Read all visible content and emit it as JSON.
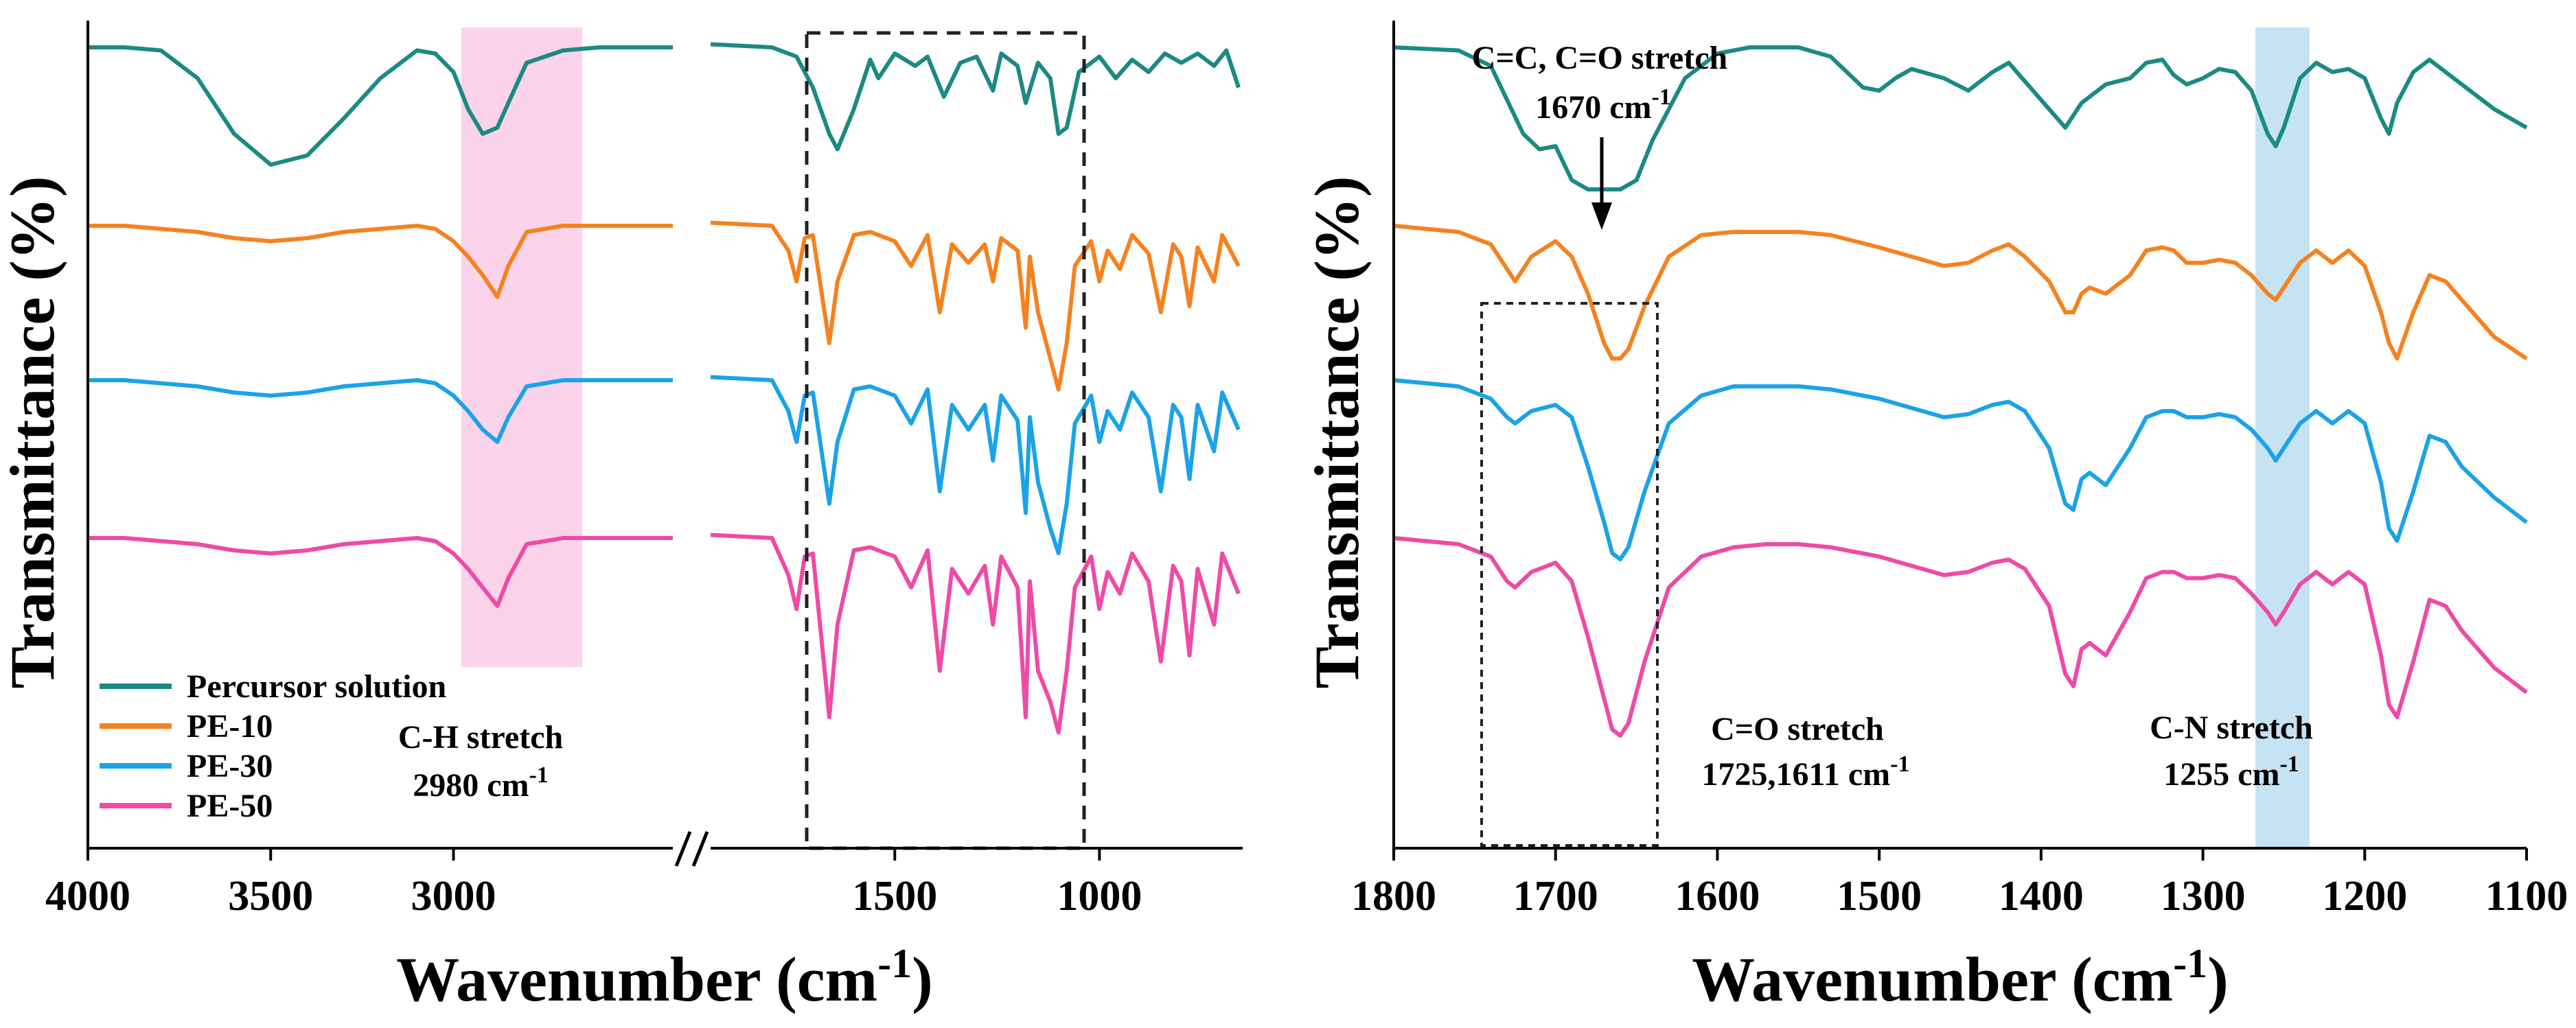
{
  "chart_data": [
    {
      "type": "line",
      "panel": "left",
      "xlabel": "Wavenumber (cm",
      "xlabel_sup": "-1",
      "xlabel_end": ")",
      "ylabel": "Transmittance (%)",
      "x_ticks": [
        "4000",
        "3500",
        "3000",
        "1500",
        "1000"
      ],
      "axis_break": true,
      "xlim_segment_1": [
        4000,
        2400
      ],
      "xlim_segment_2": [
        1950,
        650
      ],
      "legend_position": "bottom-left",
      "series": [
        {
          "name": "Percursor solution",
          "color": "#1b8a82",
          "x": [
            4000,
            3900,
            3800,
            3700,
            3600,
            3500,
            3400,
            3300,
            3200,
            3100,
            3050,
            3000,
            2960,
            2920,
            2880,
            2850,
            2800,
            2700,
            2600,
            2500,
            2400,
            1950,
            1800,
            1740,
            1700,
            1660,
            1640,
            1600,
            1560,
            1540,
            1500,
            1450,
            1420,
            1380,
            1340,
            1300,
            1260,
            1240,
            1200,
            1180,
            1150,
            1120,
            1100,
            1080,
            1050,
            1000,
            960,
            920,
            880,
            840,
            800,
            760,
            720,
            690,
            660
          ],
          "y": [
            98,
            98,
            97,
            88,
            70,
            60,
            63,
            75,
            88,
            97,
            96,
            90,
            78,
            70,
            72,
            80,
            93,
            97,
            98,
            98,
            98,
            99,
            98,
            95,
            85,
            70,
            65,
            78,
            94,
            88,
            96,
            92,
            95,
            82,
            93,
            95,
            84,
            96,
            92,
            80,
            93,
            88,
            70,
            72,
            90,
            95,
            88,
            94,
            90,
            96,
            93,
            96,
            92,
            97,
            85
          ]
        },
        {
          "name": "PE-10",
          "color": "#f5821f",
          "x": [
            4000,
            3900,
            3800,
            3700,
            3600,
            3500,
            3400,
            3300,
            3200,
            3100,
            3050,
            3000,
            2960,
            2920,
            2880,
            2850,
            2800,
            2700,
            2600,
            2500,
            2400,
            1950,
            1800,
            1760,
            1740,
            1720,
            1700,
            1660,
            1640,
            1600,
            1560,
            1500,
            1460,
            1420,
            1390,
            1360,
            1320,
            1280,
            1260,
            1240,
            1200,
            1180,
            1170,
            1150,
            1120,
            1100,
            1080,
            1060,
            1020,
            1000,
            980,
            950,
            920,
            880,
            850,
            820,
            800,
            780,
            760,
            720,
            700,
            660
          ],
          "y": [
            98,
            98,
            97,
            96,
            94,
            93,
            94,
            96,
            97,
            98,
            97,
            93,
            88,
            82,
            75,
            85,
            96,
            98,
            98,
            98,
            98,
            99,
            98,
            90,
            80,
            94,
            95,
            60,
            80,
            95,
            96,
            93,
            85,
            95,
            70,
            92,
            86,
            92,
            80,
            94,
            90,
            65,
            88,
            70,
            55,
            45,
            60,
            85,
            93,
            80,
            90,
            84,
            95,
            89,
            70,
            92,
            88,
            72,
            91,
            80,
            95,
            85
          ]
        },
        {
          "name": "PE-30",
          "color": "#1aa3e8",
          "x": [
            4000,
            3900,
            3800,
            3700,
            3600,
            3500,
            3400,
            3300,
            3200,
            3100,
            3050,
            3000,
            2960,
            2920,
            2880,
            2850,
            2800,
            2700,
            2600,
            2500,
            2400,
            1950,
            1800,
            1760,
            1740,
            1720,
            1700,
            1660,
            1640,
            1600,
            1560,
            1500,
            1460,
            1420,
            1390,
            1360,
            1320,
            1280,
            1260,
            1240,
            1200,
            1180,
            1170,
            1150,
            1120,
            1100,
            1080,
            1060,
            1020,
            1000,
            980,
            950,
            920,
            880,
            850,
            820,
            800,
            780,
            760,
            720,
            700,
            660
          ],
          "y": [
            98,
            98,
            97,
            96,
            94,
            93,
            94,
            96,
            97,
            98,
            97,
            93,
            88,
            82,
            78,
            86,
            96,
            98,
            98,
            98,
            98,
            99,
            98,
            88,
            78,
            93,
            94,
            58,
            78,
            95,
            96,
            93,
            84,
            95,
            62,
            90,
            82,
            90,
            72,
            93,
            85,
            55,
            86,
            65,
            50,
            42,
            58,
            84,
            93,
            78,
            88,
            82,
            94,
            86,
            62,
            90,
            86,
            66,
            90,
            75,
            94,
            82
          ]
        },
        {
          "name": "PE-50",
          "color": "#ee4aa6",
          "x": [
            4000,
            3900,
            3800,
            3700,
            3600,
            3500,
            3400,
            3300,
            3200,
            3100,
            3050,
            3000,
            2960,
            2920,
            2880,
            2850,
            2800,
            2700,
            2600,
            2500,
            2400,
            1950,
            1800,
            1760,
            1740,
            1720,
            1700,
            1660,
            1640,
            1600,
            1560,
            1500,
            1460,
            1420,
            1390,
            1360,
            1320,
            1280,
            1260,
            1240,
            1200,
            1180,
            1170,
            1150,
            1120,
            1100,
            1080,
            1060,
            1020,
            1000,
            980,
            950,
            920,
            880,
            850,
            820,
            800,
            780,
            760,
            720,
            700,
            660
          ],
          "y": [
            98,
            98,
            97,
            96,
            94,
            93,
            94,
            96,
            97,
            98,
            97,
            93,
            88,
            82,
            76,
            85,
            96,
            98,
            98,
            98,
            98,
            99,
            98,
            86,
            75,
            92,
            93,
            40,
            70,
            94,
            95,
            92,
            82,
            94,
            55,
            88,
            80,
            89,
            70,
            92,
            82,
            40,
            84,
            55,
            45,
            35,
            55,
            82,
            92,
            75,
            87,
            80,
            93,
            84,
            58,
            89,
            84,
            60,
            88,
            70,
            93,
            80
          ]
        }
      ],
      "annotations": [
        {
          "text": "C-H stretch",
          "line2": "2980 cm",
          "line2_sup": "-1"
        }
      ],
      "highlight_region": {
        "x_range": [
          3060,
          2790
        ],
        "color": "#fbd3ea"
      },
      "dashed_box_x_range": [
        1740,
        1060
      ]
    },
    {
      "type": "line",
      "panel": "right",
      "xlabel": "Wavenumber (cm",
      "xlabel_sup": "-1",
      "xlabel_end": ")",
      "ylabel": "Transmittance (%)",
      "xlim": [
        1800,
        1100
      ],
      "x_ticks": [
        1800,
        1700,
        1600,
        1500,
        1400,
        1300,
        1200,
        1100
      ],
      "series": [
        {
          "name": "Percursor solution",
          "color": "#1b8a82",
          "x": [
            1800,
            1760,
            1740,
            1720,
            1710,
            1700,
            1690,
            1680,
            1670,
            1660,
            1650,
            1640,
            1620,
            1600,
            1580,
            1550,
            1530,
            1510,
            1500,
            1490,
            1480,
            1460,
            1445,
            1430,
            1420,
            1410,
            1395,
            1385,
            1375,
            1370,
            1360,
            1345,
            1335,
            1325,
            1318,
            1310,
            1300,
            1290,
            1280,
            1270,
            1260,
            1255,
            1250,
            1240,
            1230,
            1220,
            1210,
            1200,
            1190,
            1185,
            1180,
            1170,
            1160,
            1150,
            1140,
            1120,
            1100
          ],
          "y": [
            98,
            97,
            92,
            70,
            65,
            66,
            55,
            52,
            52,
            52,
            55,
            68,
            88,
            96,
            98,
            98,
            95,
            85,
            84,
            88,
            91,
            88,
            84,
            90,
            93,
            87,
            78,
            72,
            80,
            82,
            86,
            88,
            93,
            94,
            89,
            86,
            88,
            91,
            90,
            84,
            70,
            66,
            72,
            88,
            93,
            90,
            91,
            88,
            75,
            70,
            80,
            90,
            94,
            90,
            86,
            78,
            72
          ]
        },
        {
          "name": "PE-10",
          "color": "#f5821f",
          "x": [
            1800,
            1760,
            1740,
            1730,
            1725,
            1715,
            1700,
            1690,
            1680,
            1670,
            1665,
            1660,
            1655,
            1645,
            1630,
            1610,
            1590,
            1570,
            1550,
            1530,
            1500,
            1480,
            1460,
            1445,
            1430,
            1420,
            1410,
            1395,
            1385,
            1380,
            1375,
            1370,
            1360,
            1345,
            1335,
            1325,
            1318,
            1310,
            1300,
            1290,
            1280,
            1270,
            1260,
            1255,
            1250,
            1240,
            1230,
            1220,
            1210,
            1200,
            1190,
            1185,
            1180,
            1170,
            1160,
            1150,
            1140,
            1120,
            1100
          ],
          "y": [
            98,
            96,
            92,
            84,
            80,
            88,
            93,
            88,
            76,
            60,
            55,
            55,
            58,
            72,
            88,
            95,
            96,
            96,
            96,
            95,
            91,
            88,
            85,
            86,
            90,
            92,
            88,
            80,
            70,
            70,
            76,
            78,
            76,
            82,
            90,
            91,
            90,
            86,
            86,
            87,
            86,
            82,
            76,
            74,
            78,
            86,
            90,
            86,
            90,
            85,
            70,
            60,
            55,
            70,
            82,
            80,
            74,
            62,
            55
          ]
        },
        {
          "name": "PE-30",
          "color": "#1aa3e8",
          "x": [
            1800,
            1760,
            1740,
            1730,
            1725,
            1715,
            1700,
            1690,
            1680,
            1670,
            1665,
            1660,
            1655,
            1645,
            1630,
            1610,
            1590,
            1570,
            1550,
            1530,
            1500,
            1480,
            1460,
            1445,
            1430,
            1420,
            1410,
            1395,
            1385,
            1380,
            1375,
            1370,
            1360,
            1345,
            1335,
            1325,
            1318,
            1310,
            1300,
            1290,
            1280,
            1270,
            1260,
            1255,
            1250,
            1240,
            1230,
            1220,
            1210,
            1200,
            1190,
            1185,
            1180,
            1170,
            1160,
            1150,
            1140,
            1120,
            1100
          ],
          "y": [
            98,
            96,
            92,
            86,
            84,
            88,
            90,
            86,
            70,
            52,
            42,
            40,
            44,
            62,
            84,
            93,
            96,
            96,
            96,
            95,
            92,
            89,
            86,
            87,
            90,
            91,
            88,
            76,
            58,
            56,
            66,
            68,
            64,
            76,
            86,
            88,
            88,
            86,
            86,
            87,
            86,
            82,
            76,
            72,
            76,
            84,
            88,
            84,
            88,
            84,
            65,
            50,
            46,
            62,
            80,
            78,
            70,
            60,
            52
          ]
        },
        {
          "name": "PE-50",
          "color": "#ee4aa6",
          "x": [
            1800,
            1760,
            1740,
            1730,
            1725,
            1715,
            1700,
            1690,
            1680,
            1670,
            1665,
            1660,
            1655,
            1645,
            1630,
            1610,
            1590,
            1570,
            1550,
            1530,
            1500,
            1480,
            1460,
            1445,
            1430,
            1420,
            1410,
            1395,
            1385,
            1380,
            1375,
            1370,
            1360,
            1345,
            1335,
            1325,
            1318,
            1310,
            1300,
            1290,
            1280,
            1270,
            1260,
            1255,
            1250,
            1240,
            1230,
            1220,
            1210,
            1200,
            1190,
            1185,
            1180,
            1170,
            1160,
            1150,
            1140,
            1120,
            1100
          ],
          "y": [
            98,
            96,
            92,
            84,
            82,
            87,
            90,
            84,
            66,
            46,
            36,
            34,
            38,
            58,
            82,
            92,
            95,
            96,
            96,
            95,
            92,
            89,
            86,
            87,
            90,
            91,
            88,
            76,
            54,
            50,
            62,
            64,
            60,
            74,
            85,
            87,
            87,
            85,
            85,
            86,
            85,
            80,
            74,
            70,
            74,
            83,
            87,
            83,
            87,
            83,
            60,
            44,
            40,
            58,
            78,
            76,
            68,
            56,
            48
          ]
        }
      ],
      "annotations": [
        {
          "text": "C=C, C=O stretch",
          "line2": "1670 cm",
          "line2_sup": "-1"
        },
        {
          "text": "C=O stretch",
          "line2": "1725,1611 cm",
          "line2_sup": "-1"
        },
        {
          "text": "C-N stretch",
          "line2": "1255 cm",
          "line2_sup": "-1"
        }
      ],
      "highlight_region": {
        "x_range": [
          1268,
          1236
        ],
        "color": "#c5e3f2"
      },
      "dotted_box_x_range": [
        1750,
        1638
      ]
    }
  ]
}
